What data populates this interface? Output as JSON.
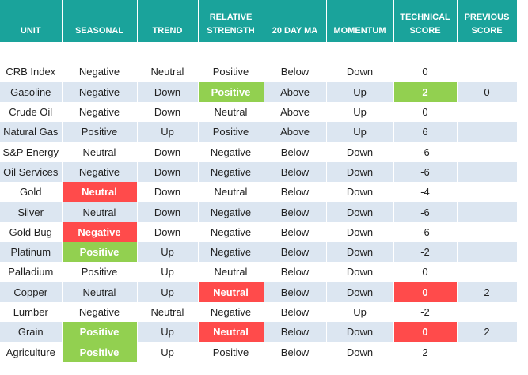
{
  "table": {
    "columns": [
      "UNIT",
      "SEASONAL",
      "TREND",
      "RELATIVE STRENGTH",
      "20 DAY MA",
      "MOMENTUM",
      "TECHNICAL SCORE",
      "PREVIOUS SCORE"
    ],
    "rows": [
      [
        "CRB Index",
        "Negative",
        "Neutral",
        "Positive",
        "Below",
        "Down",
        "0",
        null
      ],
      [
        "Gasoline",
        "Negative",
        "Down",
        "Positive",
        "Above",
        "Up",
        "2",
        "0"
      ],
      [
        "Crude Oil",
        "Negative",
        "Down",
        "Neutral",
        "Above",
        "Up",
        "0",
        null
      ],
      [
        "Natural Gas",
        "Positive",
        "Up",
        "Positive",
        "Above",
        "Up",
        "6",
        null
      ],
      [
        "S&P Energy",
        "Neutral",
        "Down",
        "Negative",
        "Below",
        "Down",
        "-6",
        null
      ],
      [
        "Oil Services",
        "Negative",
        "Down",
        "Negative",
        "Below",
        "Down",
        "-6",
        null
      ],
      [
        "Gold",
        "Neutral",
        "Down",
        "Neutral",
        "Below",
        "Down",
        "-4",
        null
      ],
      [
        "Silver",
        "Neutral",
        "Down",
        "Negative",
        "Below",
        "Down",
        "-6",
        null
      ],
      [
        "Gold Bug",
        "Negative",
        "Down",
        "Negative",
        "Below",
        "Down",
        "-6",
        null
      ],
      [
        "Platinum",
        "Positive",
        "Up",
        "Negative",
        "Below",
        "Down",
        "-2",
        null
      ],
      [
        "Palladium",
        "Positive",
        "Up",
        "Neutral",
        "Below",
        "Down",
        "0",
        null
      ],
      [
        "Copper",
        "Neutral",
        "Up",
        "Neutral",
        "Below",
        "Down",
        "0",
        "2"
      ],
      [
        "Lumber",
        "Negative",
        "Neutral",
        "Negative",
        "Below",
        "Up",
        "-2",
        null
      ],
      [
        "Grain",
        "Positive",
        "Up",
        "Neutral",
        "Below",
        "Down",
        "0",
        "2"
      ],
      [
        "Agriculture",
        "Positive",
        "Up",
        "Positive",
        "Below",
        "Down",
        "2",
        null
      ]
    ]
  }
}
